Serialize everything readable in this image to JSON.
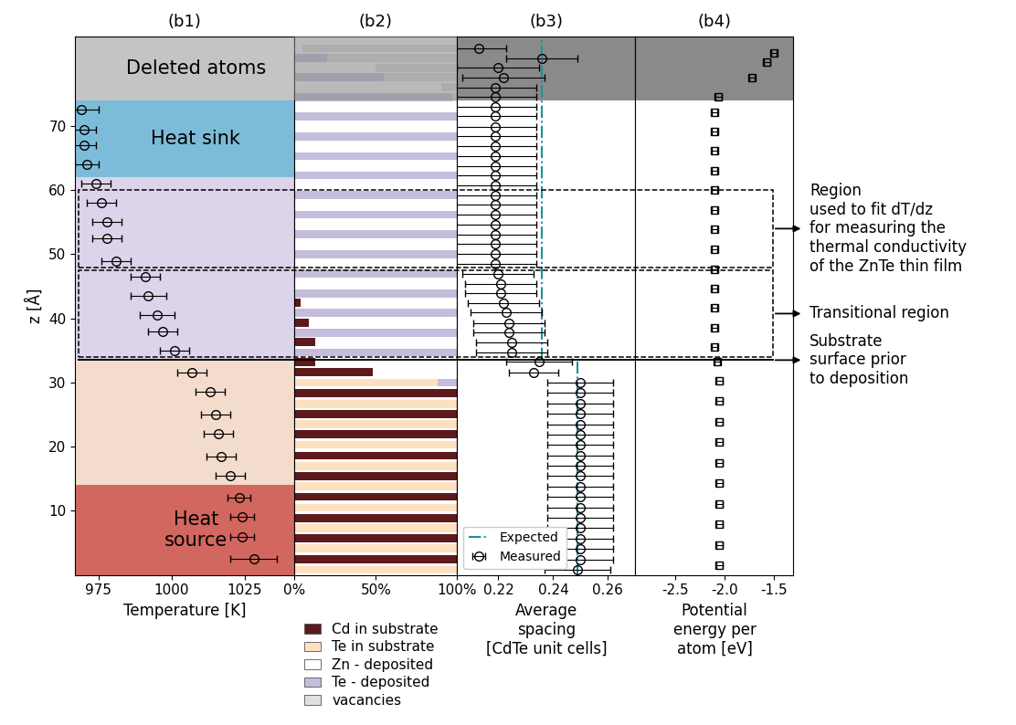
{
  "chart_data": [
    {
      "type": "scatter",
      "title": "(b1)",
      "xlabel": "Temperature [K]",
      "ylabel": "z [Å]",
      "marker": "circle",
      "color": "#000000",
      "x": [
        1028,
        1024,
        1024,
        1023,
        1020,
        1017,
        1016,
        1015,
        1013,
        1007,
        1001,
        997,
        995,
        992,
        991,
        981,
        978,
        978,
        976,
        974,
        971,
        970,
        970,
        969
      ],
      "y": [
        2.5,
        6,
        9,
        12,
        15.5,
        18.5,
        22,
        25,
        28.5,
        31.5,
        35,
        38,
        40.5,
        43.5,
        46.5,
        49,
        52.5,
        55,
        58,
        61,
        64,
        67,
        69.5,
        72.5
      ],
      "x_error": [
        8,
        4,
        4,
        4,
        5,
        5,
        5,
        5,
        5,
        5,
        5,
        5,
        6,
        6,
        5,
        5,
        5,
        5,
        5,
        5,
        4,
        4,
        4,
        6
      ],
      "xlim": [
        967,
        1042
      ],
      "xticks": [
        975,
        1000,
        1025
      ],
      "ylim": [
        0,
        84
      ],
      "yticks": [
        10,
        20,
        30,
        40,
        50,
        60,
        70
      ],
      "regions": [
        {
          "from": 14,
          "to": 33.5,
          "color": "#f3dccb"
        },
        {
          "from": 33.5,
          "to": 62,
          "color": "#ddd3ea"
        },
        {
          "name": "Heat sink",
          "from": 62,
          "to": 74,
          "color": "#7dbcd8"
        },
        {
          "name": "Heat\nsource",
          "from": 0,
          "to": 14,
          "color": "#d2675f"
        },
        {
          "name": "Deleted atoms",
          "from": 74,
          "to": 84,
          "color": "#c4c4c4"
        }
      ]
    },
    {
      "type": "bar",
      "title": "(b2)",
      "orientation": "horizontal",
      "stacked": true,
      "legend": "below",
      "tick_labels": "x",
      "y": [
        0.8,
        2.4,
        4.1,
        5.7,
        7.3,
        8.9,
        10.5,
        12.2,
        13.8,
        15.4,
        17.0,
        18.6,
        20.3,
        21.9,
        23.5,
        25.1,
        26.7,
        28.4,
        30.0,
        31.6,
        33.2,
        34.7,
        36.3,
        37.8,
        39.3,
        40.9,
        42.4,
        43.9,
        45.4,
        47.0,
        48.5,
        50.0,
        51.6,
        53.1,
        54.6,
        56.2,
        57.7,
        59.2,
        60.7,
        62.3,
        63.8,
        65.3,
        66.9,
        68.4,
        69.9,
        71.5,
        73.0,
        74.5,
        76.0,
        77.6,
        79.1,
        80.6,
        82.1
      ],
      "series": [
        {
          "name": "Cd in substrate",
          "color": "#5c1a1b",
          "values": [
            0,
            100,
            0,
            100,
            0,
            100,
            0,
            100,
            0,
            100,
            0,
            100,
            0,
            100,
            0,
            100,
            0,
            100,
            0,
            48,
            13,
            0,
            13,
            0,
            9,
            0,
            4,
            0,
            0,
            0,
            0,
            0,
            0,
            0,
            0,
            0,
            0,
            0,
            0,
            0,
            0,
            0,
            0,
            0,
            0,
            0,
            0,
            0,
            0,
            0,
            0,
            0,
            0
          ]
        },
        {
          "name": "Te in substrate",
          "color": "#fde0c0",
          "values": [
            100,
            0,
            100,
            0,
            100,
            0,
            100,
            0,
            100,
            0,
            100,
            0,
            100,
            0,
            100,
            0,
            100,
            0,
            88,
            0,
            0,
            0,
            0,
            0,
            0,
            0,
            0,
            0,
            0,
            0,
            0,
            0,
            0,
            0,
            0,
            0,
            0,
            0,
            0,
            0,
            0,
            0,
            0,
            0,
            0,
            0,
            0,
            0,
            0,
            0,
            0,
            0,
            0
          ]
        },
        {
          "name": "Zn - deposited",
          "color": "#ffffff",
          "values": [
            0,
            0,
            0,
            0,
            0,
            0,
            0,
            0,
            0,
            0,
            0,
            0,
            0,
            0,
            0,
            0,
            0,
            0,
            0,
            52,
            87,
            0,
            87,
            0,
            91,
            0,
            96,
            0,
            100,
            0,
            100,
            0,
            100,
            0,
            100,
            0,
            100,
            0,
            100,
            0,
            100,
            0,
            100,
            0,
            100,
            0,
            100,
            0,
            90,
            0,
            50,
            0,
            5
          ]
        },
        {
          "name": "Te - deposited",
          "color": "#c5bddb",
          "values": [
            0,
            0,
            0,
            0,
            0,
            0,
            0,
            0,
            0,
            0,
            0,
            0,
            0,
            0,
            0,
            0,
            0,
            0,
            12,
            0,
            0,
            100,
            0,
            100,
            0,
            100,
            0,
            100,
            0,
            100,
            0,
            100,
            0,
            100,
            0,
            100,
            0,
            100,
            0,
            100,
            0,
            100,
            0,
            100,
            0,
            100,
            0,
            97,
            0,
            55,
            0,
            20,
            0
          ]
        },
        {
          "name": "vacancies",
          "color": "#e0e0e0",
          "values": [
            0,
            0,
            0,
            0,
            0,
            0,
            0,
            0,
            0,
            0,
            0,
            0,
            0,
            0,
            0,
            0,
            0,
            0,
            0,
            0,
            0,
            0,
            0,
            0,
            0,
            0,
            0,
            0,
            0,
            0,
            0,
            0,
            0,
            0,
            0,
            0,
            0,
            0,
            0,
            0,
            0,
            0,
            0,
            0,
            0,
            0,
            0,
            3,
            10,
            45,
            50,
            80,
            95
          ]
        }
      ],
      "xlim": [
        0,
        100
      ],
      "xticks": [
        {
          "value": 0,
          "label": "0%"
        },
        {
          "value": 50,
          "label": "50%"
        },
        {
          "value": 100,
          "label": "100%"
        }
      ],
      "ylim": [
        0,
        84
      ],
      "regions": [
        {
          "from": 74,
          "to": 84,
          "color": "#8c8c8c"
        }
      ]
    },
    {
      "type": "scatter",
      "title": "(b3)",
      "xlabel": "Average\nspacing\n[CdTe unit cells]",
      "legend": "lower left",
      "tick_labels": "x",
      "series": [
        {
          "name": "Expected",
          "type": "line",
          "line_style": "dashdot",
          "color": "#1f8fa0",
          "x": [
            0.249,
            0.249,
            null,
            0.236,
            0.236
          ],
          "y": [
            0,
            33.5,
            null,
            33.5,
            84
          ]
        },
        {
          "name": "Measured",
          "type": "scatter",
          "marker": "circle",
          "color": "#000000",
          "x": [
            0.249,
            0.25,
            0.25,
            0.25,
            0.25,
            0.25,
            0.25,
            0.25,
            0.25,
            0.25,
            0.25,
            0.25,
            0.25,
            0.25,
            0.25,
            0.25,
            0.25,
            0.25,
            0.25,
            0.233,
            0.235,
            0.225,
            0.225,
            0.224,
            0.224,
            0.223,
            0.222,
            0.221,
            0.221,
            0.22,
            0.219,
            0.219,
            0.219,
            0.219,
            0.219,
            0.219,
            0.219,
            0.219,
            0.219,
            0.219,
            0.219,
            0.219,
            0.219,
            0.219,
            0.219,
            0.219,
            0.219,
            0.219,
            0.219,
            0.222,
            0.22,
            0.236,
            0.213
          ],
          "y": [
            0.8,
            2.4,
            4.1,
            5.7,
            7.3,
            8.9,
            10.5,
            12.2,
            13.8,
            15.4,
            17.0,
            18.6,
            20.3,
            21.9,
            23.5,
            25.1,
            26.7,
            28.4,
            30.0,
            31.6,
            33.2,
            34.7,
            36.3,
            37.8,
            39.3,
            40.9,
            42.4,
            43.9,
            45.4,
            47.0,
            48.5,
            50.0,
            51.6,
            53.1,
            54.6,
            56.2,
            57.7,
            59.2,
            60.7,
            62.3,
            63.8,
            65.3,
            66.9,
            68.4,
            69.9,
            71.5,
            73.0,
            74.5,
            76.0,
            77.6,
            79.1,
            80.6,
            82.1
          ],
          "x_error": [
            0.012,
            0.012,
            0.012,
            0.012,
            0.012,
            0.012,
            0.012,
            0.012,
            0.012,
            0.012,
            0.012,
            0.012,
            0.012,
            0.012,
            0.012,
            0.012,
            0.012,
            0.012,
            0.012,
            0.009,
            0.012,
            0.013,
            0.013,
            0.013,
            0.013,
            0.013,
            0.013,
            0.013,
            0.013,
            0.013,
            0.015,
            0.015,
            0.015,
            0.015,
            0.015,
            0.015,
            0.015,
            0.015,
            0.015,
            0.015,
            0.015,
            0.015,
            0.015,
            0.015,
            0.015,
            0.015,
            0.015,
            0.015,
            0.015,
            0.015,
            0.015,
            0.013,
            0.01
          ]
        }
      ],
      "xlim": [
        0.205,
        0.27
      ],
      "xticks": [
        0.22,
        0.24,
        0.26
      ],
      "ylim": [
        0,
        84
      ],
      "regions": [
        {
          "from": 74,
          "to": 84,
          "color": "#8a8a8a"
        }
      ]
    },
    {
      "type": "scatter",
      "title": "(b4)",
      "xlabel": "Potential\nenergy per\natom [eV]",
      "tick_labels": "x",
      "marker": "square",
      "color": "#000000",
      "x": [
        -2.05,
        -2.05,
        -2.05,
        -2.05,
        -2.05,
        -2.05,
        -2.05,
        -2.05,
        -2.05,
        -2.05,
        -2.07,
        -2.1,
        -2.1,
        -2.1,
        -2.1,
        -2.1,
        -2.1,
        -2.1,
        -2.1,
        -2.1,
        -2.1,
        -2.1,
        -2.1,
        -2.1,
        -2.06,
        -1.72,
        -1.57,
        -1.5
      ],
      "y": [
        1.5,
        4.7,
        7.9,
        11.1,
        14.3,
        17.5,
        20.7,
        23.9,
        27.1,
        30.3,
        33.2,
        35.5,
        38.6,
        41.6,
        44.7,
        47.7,
        50.8,
        53.9,
        56.9,
        60.0,
        63.0,
        66.1,
        69.1,
        72.2,
        74.5,
        77.6,
        79.9,
        81.4
      ],
      "x_error": [
        0.03,
        0.03,
        0.03,
        0.03,
        0.03,
        0.03,
        0.03,
        0.03,
        0.03,
        0.03,
        0.03,
        0.03,
        0.03,
        0.03,
        0.03,
        0.03,
        0.03,
        0.03,
        0.03,
        0.03,
        0.03,
        0.03,
        0.03,
        0.03,
        0.03,
        0.03,
        0.03,
        0.03
      ],
      "xlim": [
        -2.9,
        -1.3
      ],
      "xticks": [
        -2.5,
        -2.0,
        -1.5
      ],
      "ylim": [
        0,
        84
      ],
      "regions": [
        {
          "from": 74,
          "to": 84,
          "color": "#8a8a8a"
        }
      ]
    }
  ],
  "annotations": [
    {
      "text": "Region\nused to fit dT/dz\nfor measuring the\nthermal conductivity\nof the ZnTe thin film",
      "from": 48,
      "to": 60,
      "line_style": "dashed"
    },
    {
      "text": "Transitional region",
      "from": 34,
      "to": 47.5,
      "line_style": "dashed"
    },
    {
      "text": "Substrate\nsurface prior\nto deposition",
      "at": 33.5,
      "line_style": "solid"
    }
  ]
}
